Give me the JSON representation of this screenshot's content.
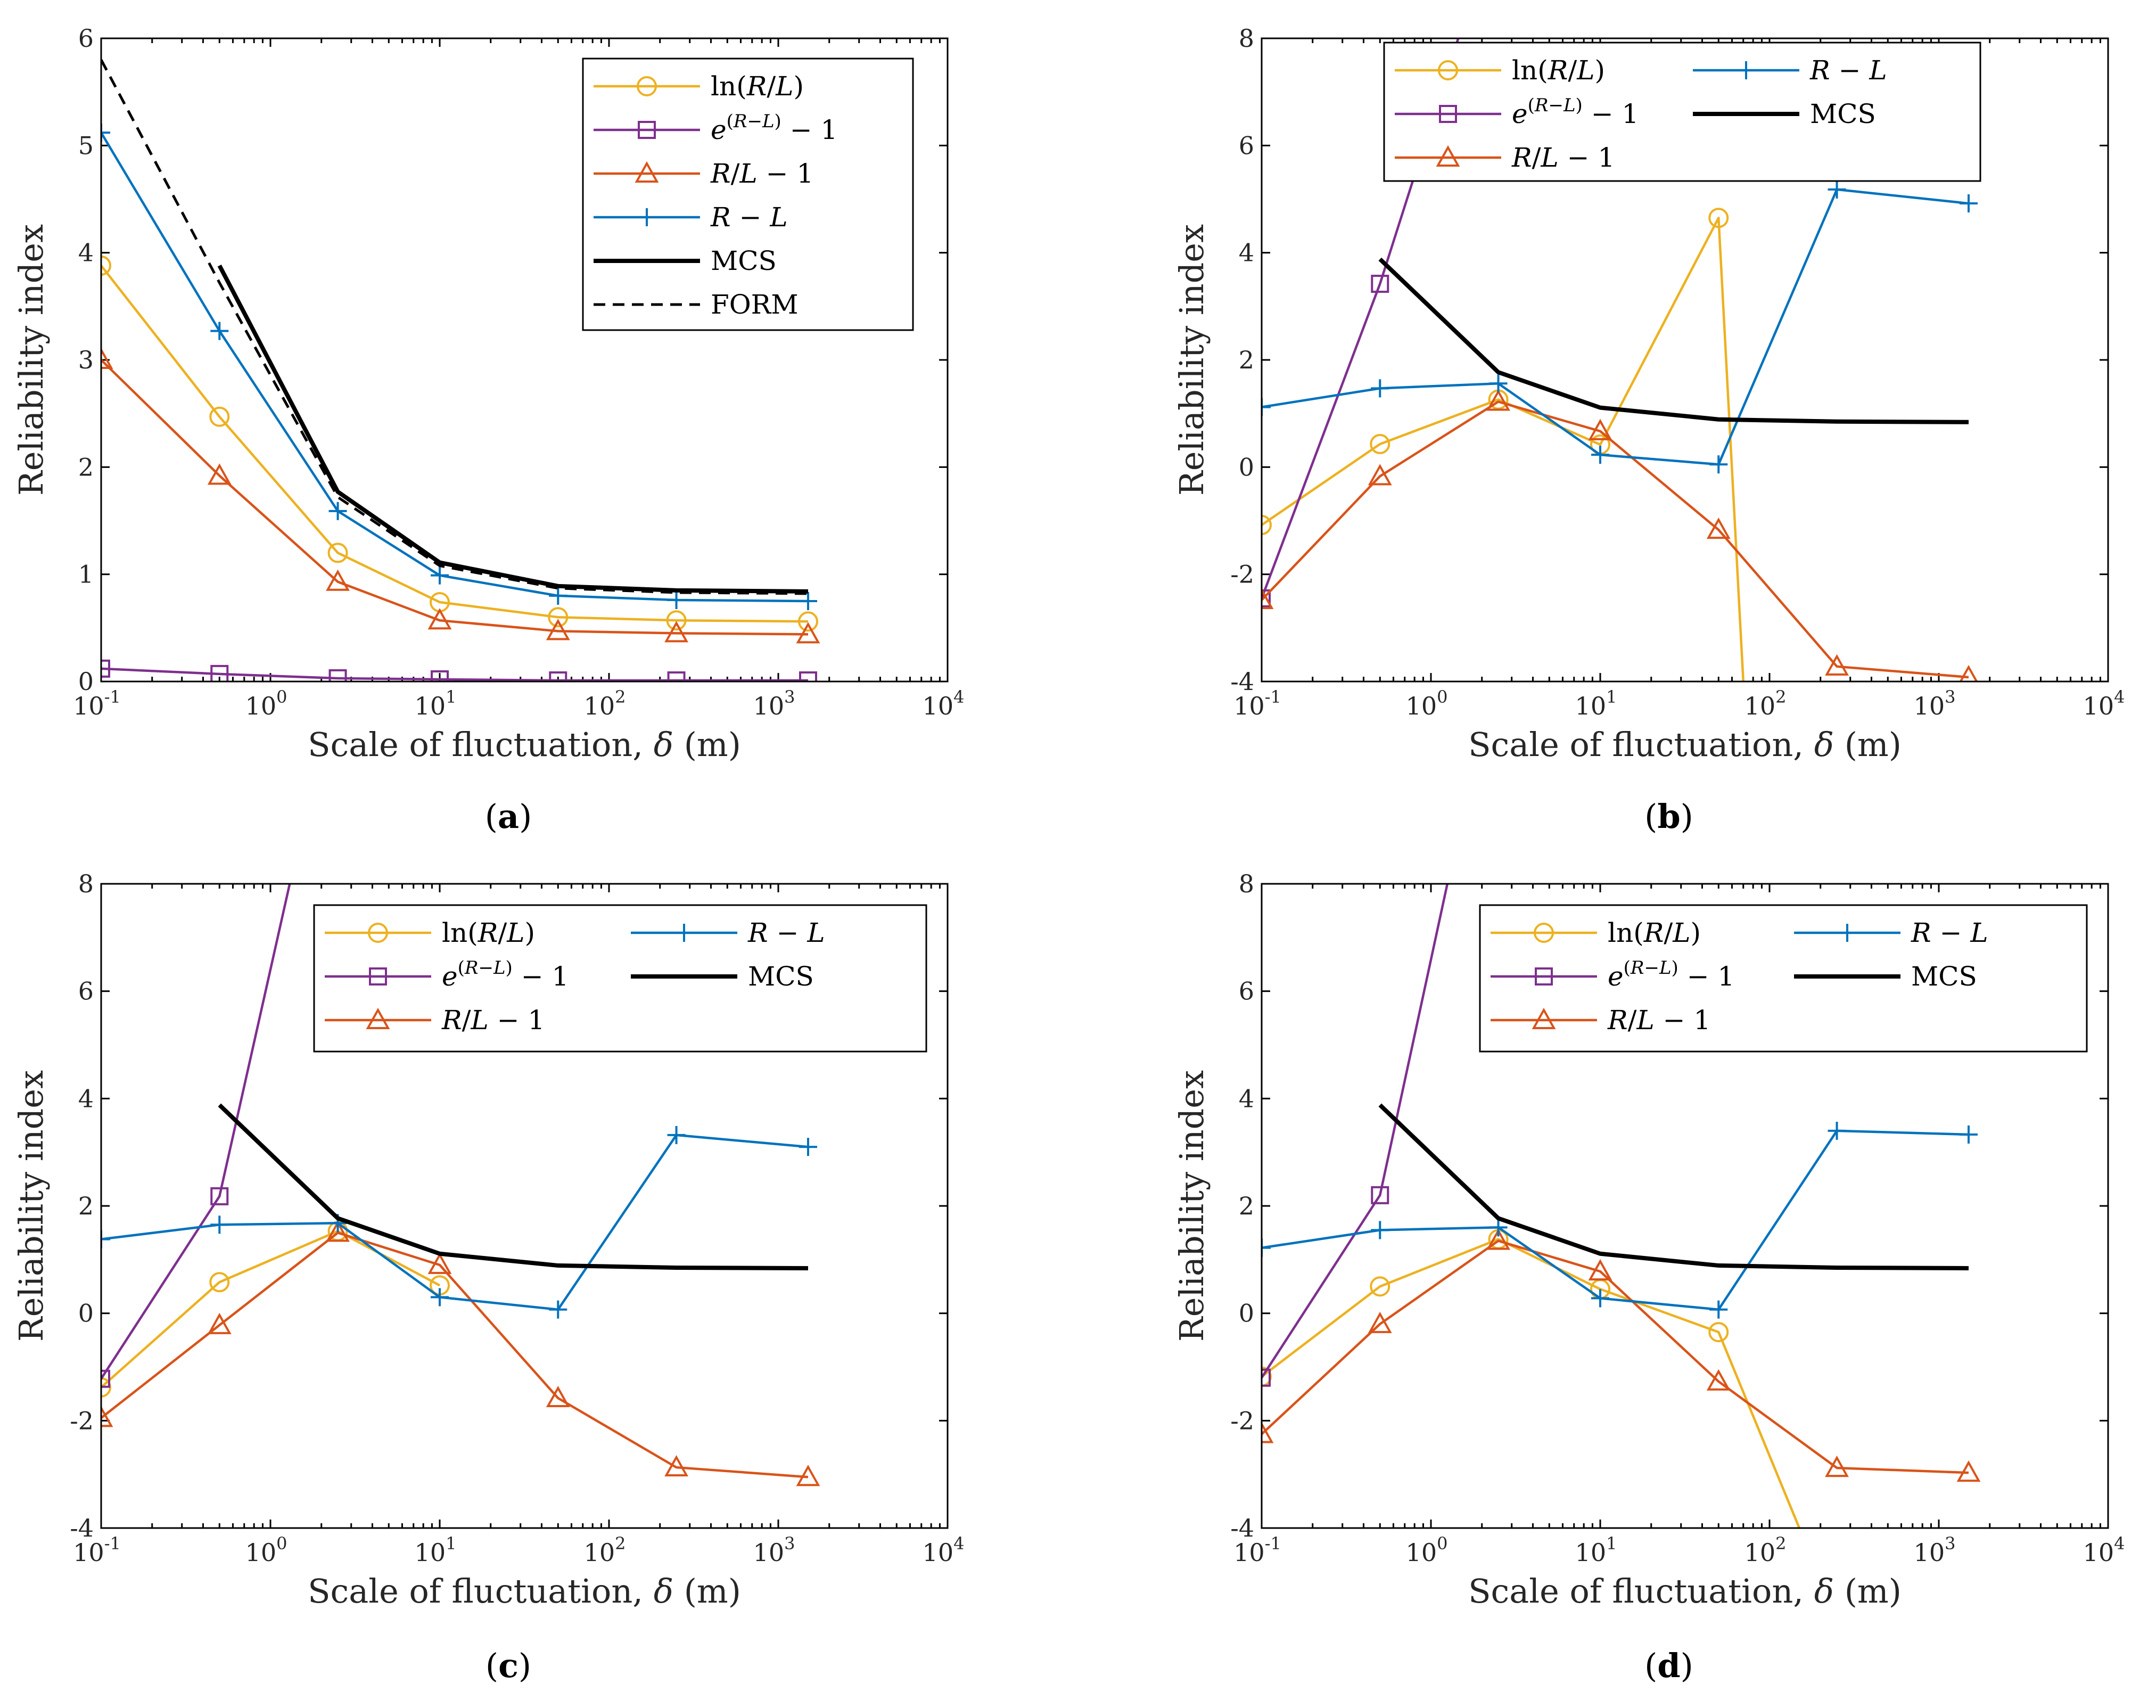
{
  "chart_data": [
    {
      "type": "line",
      "panel_label": "a",
      "xscale": "log",
      "xlabel": "Scale of fluctuation, δ (m)",
      "ylabel": "Reliability index",
      "xlim": [
        0.1,
        10000
      ],
      "ylim": [
        0,
        6
      ],
      "xticks": [
        {
          "base": "10",
          "exp": "-1"
        },
        {
          "base": "10",
          "exp": "0"
        },
        {
          "base": "10",
          "exp": "1"
        },
        {
          "base": "10",
          "exp": "2"
        },
        {
          "base": "10",
          "exp": "3"
        },
        {
          "base": "10",
          "exp": "4"
        }
      ],
      "yticks": [
        "0",
        "1",
        "2",
        "3",
        "4",
        "5",
        "6"
      ],
      "legend_position": "top-right",
      "legend_columns": 1,
      "series": [
        {
          "name": "ln(R/L)",
          "color": "#EDB120",
          "marker": "circle",
          "x": [
            0.1,
            0.5,
            2.5,
            10,
            50,
            250,
            1500
          ],
          "y": [
            3.88,
            2.47,
            1.2,
            0.74,
            0.6,
            0.57,
            0.56
          ]
        },
        {
          "name": "e^(R−L) − 1",
          "color": "#7E2F8E",
          "marker": "square",
          "x": [
            0.1,
            0.5,
            2.5,
            10,
            50,
            250,
            1500
          ],
          "y": [
            0.12,
            0.07,
            0.03,
            0.02,
            0.01,
            0.01,
            0.01
          ]
        },
        {
          "name": "R/L − 1",
          "color": "#D95319",
          "marker": "triangle",
          "x": [
            0.1,
            0.5,
            2.5,
            10,
            50,
            250,
            1500
          ],
          "y": [
            3.0,
            1.92,
            0.93,
            0.57,
            0.47,
            0.45,
            0.44
          ]
        },
        {
          "name": "R − L",
          "color": "#0072BD",
          "marker": "plus",
          "x": [
            0.1,
            0.5,
            2.5,
            10,
            50,
            250,
            1500
          ],
          "y": [
            5.12,
            3.27,
            1.59,
            0.99,
            0.8,
            0.76,
            0.75
          ]
        },
        {
          "name": "MCS",
          "color": "#000000",
          "marker": "none",
          "style": "solid-thick",
          "x": [
            0.5,
            2.5,
            10,
            50,
            250,
            1500
          ],
          "y": [
            3.88,
            1.77,
            1.11,
            0.89,
            0.85,
            0.84
          ]
        },
        {
          "name": "FORM",
          "color": "#000000",
          "marker": "none",
          "style": "dashed",
          "x": [
            0.1,
            0.5,
            2.5,
            10,
            50,
            250,
            1500
          ],
          "y": [
            5.8,
            3.72,
            1.72,
            1.08,
            0.87,
            0.83,
            0.82
          ]
        }
      ]
    },
    {
      "type": "line",
      "panel_label": "b",
      "xscale": "log",
      "xlabel": "Scale of fluctuation, δ (m)",
      "ylabel": "Reliability index",
      "xlim": [
        0.1,
        10000
      ],
      "ylim": [
        -4,
        8
      ],
      "xticks": [
        {
          "base": "10",
          "exp": "-1"
        },
        {
          "base": "10",
          "exp": "0"
        },
        {
          "base": "10",
          "exp": "1"
        },
        {
          "base": "10",
          "exp": "2"
        },
        {
          "base": "10",
          "exp": "3"
        },
        {
          "base": "10",
          "exp": "4"
        }
      ],
      "yticks": [
        "-4",
        "-2",
        "0",
        "2",
        "4",
        "6",
        "8"
      ],
      "legend_position": "top",
      "legend_columns": 2,
      "series": [
        {
          "name": "ln(R/L)",
          "color": "#EDB120",
          "marker": "circle",
          "x": [
            0.1,
            0.5,
            2.5,
            10,
            50,
            70
          ],
          "y": [
            -1.08,
            0.43,
            1.26,
            0.42,
            4.65,
            -4.0
          ],
          "marker_count": 5
        },
        {
          "name": "e^(R−L) − 1",
          "color": "#7E2F8E",
          "marker": "square",
          "x": [
            0.1,
            0.5,
            1.45
          ],
          "y": [
            -2.45,
            3.42,
            8.0
          ],
          "marker_count": 2
        },
        {
          "name": "R/L − 1",
          "color": "#D95319",
          "marker": "triangle",
          "x": [
            0.1,
            0.5,
            2.5,
            10,
            50,
            250,
            1500
          ],
          "y": [
            -2.48,
            -0.17,
            1.22,
            0.67,
            -1.17,
            -3.72,
            -3.92
          ],
          "marker_count": 7
        },
        {
          "name": "R − L",
          "color": "#0072BD",
          "marker": "plus",
          "x": [
            0.1,
            0.5,
            2.5,
            10,
            50,
            250,
            1500
          ],
          "y": [
            1.12,
            1.47,
            1.56,
            0.23,
            0.05,
            5.18,
            4.92
          ],
          "marker_count": 7
        },
        {
          "name": "MCS",
          "color": "#000000",
          "marker": "none",
          "style": "solid-thick",
          "x": [
            0.5,
            2.5,
            10,
            50,
            250,
            1500
          ],
          "y": [
            3.88,
            1.77,
            1.11,
            0.89,
            0.85,
            0.84
          ]
        }
      ]
    },
    {
      "type": "line",
      "panel_label": "c",
      "xscale": "log",
      "xlabel": "Scale of fluctuation, δ (m)",
      "ylabel": "Reliability index",
      "xlim": [
        0.1,
        10000
      ],
      "ylim": [
        -4,
        8
      ],
      "xticks": [
        {
          "base": "10",
          "exp": "-1"
        },
        {
          "base": "10",
          "exp": "0"
        },
        {
          "base": "10",
          "exp": "1"
        },
        {
          "base": "10",
          "exp": "2"
        },
        {
          "base": "10",
          "exp": "3"
        },
        {
          "base": "10",
          "exp": "4"
        }
      ],
      "yticks": [
        "-4",
        "-2",
        "0",
        "2",
        "4",
        "6",
        "8"
      ],
      "legend_position": "top-right",
      "legend_columns": 2,
      "series": [
        {
          "name": "ln(R/L)",
          "color": "#EDB120",
          "marker": "circle",
          "x": [
            0.1,
            0.5,
            2.5,
            10
          ],
          "y": [
            -1.38,
            0.58,
            1.53,
            0.52
          ],
          "marker_count": 4
        },
        {
          "name": "e^(R−L) − 1",
          "color": "#7E2F8E",
          "marker": "square",
          "x": [
            0.1,
            0.5,
            1.3
          ],
          "y": [
            -1.22,
            2.18,
            8.0
          ],
          "marker_count": 2
        },
        {
          "name": "R/L − 1",
          "color": "#D95319",
          "marker": "triangle",
          "x": [
            0.1,
            0.5,
            2.5,
            10,
            50,
            250,
            1500
          ],
          "y": [
            -1.95,
            -0.22,
            1.5,
            0.9,
            -1.58,
            -2.87,
            -3.05
          ],
          "marker_count": 7
        },
        {
          "name": "R − L",
          "color": "#0072BD",
          "marker": "plus",
          "x": [
            0.1,
            0.5,
            2.5,
            10,
            50,
            250,
            1500
          ],
          "y": [
            1.38,
            1.65,
            1.68,
            0.3,
            0.07,
            3.32,
            3.1
          ],
          "marker_count": 7
        },
        {
          "name": "MCS",
          "color": "#000000",
          "marker": "none",
          "style": "solid-thick",
          "x": [
            0.5,
            2.5,
            10,
            50,
            250,
            1500
          ],
          "y": [
            3.88,
            1.77,
            1.11,
            0.89,
            0.85,
            0.84
          ]
        }
      ]
    },
    {
      "type": "line",
      "panel_label": "d",
      "xscale": "log",
      "xlabel": "Scale of fluctuation, δ (m)",
      "ylabel": "Reliability index",
      "xlim": [
        0.1,
        10000
      ],
      "ylim": [
        -4,
        8
      ],
      "xticks": [
        {
          "base": "10",
          "exp": "-1"
        },
        {
          "base": "10",
          "exp": "0"
        },
        {
          "base": "10",
          "exp": "1"
        },
        {
          "base": "10",
          "exp": "2"
        },
        {
          "base": "10",
          "exp": "3"
        },
        {
          "base": "10",
          "exp": "4"
        }
      ],
      "yticks": [
        "-4",
        "-2",
        "0",
        "2",
        "4",
        "6",
        "8"
      ],
      "legend_position": "top-right",
      "legend_columns": 2,
      "series": [
        {
          "name": "ln(R/L)",
          "color": "#EDB120",
          "marker": "circle",
          "x": [
            0.1,
            0.5,
            2.5,
            10,
            50,
            150
          ],
          "y": [
            -1.18,
            0.5,
            1.38,
            0.45,
            -0.35,
            -4.0
          ],
          "marker_count": 5
        },
        {
          "name": "e^(R−L) − 1",
          "color": "#7E2F8E",
          "marker": "square",
          "x": [
            0.1,
            0.5,
            1.25
          ],
          "y": [
            -1.2,
            2.2,
            8.0
          ],
          "marker_count": 2
        },
        {
          "name": "R/L − 1",
          "color": "#D95319",
          "marker": "triangle",
          "x": [
            0.1,
            0.5,
            2.5,
            10,
            50,
            250,
            1500
          ],
          "y": [
            -2.25,
            -0.2,
            1.35,
            0.78,
            -1.27,
            -2.88,
            -2.97
          ],
          "marker_count": 7
        },
        {
          "name": "R − L",
          "color": "#0072BD",
          "marker": "plus",
          "x": [
            0.1,
            0.5,
            2.5,
            10,
            50,
            250,
            1500
          ],
          "y": [
            1.22,
            1.55,
            1.6,
            0.28,
            0.07,
            3.4,
            3.33
          ],
          "marker_count": 7
        },
        {
          "name": "MCS",
          "color": "#000000",
          "marker": "none",
          "style": "solid-thick",
          "x": [
            0.5,
            2.5,
            10,
            50,
            250,
            1500
          ],
          "y": [
            3.88,
            1.77,
            1.11,
            0.89,
            0.85,
            0.84
          ]
        }
      ]
    }
  ]
}
